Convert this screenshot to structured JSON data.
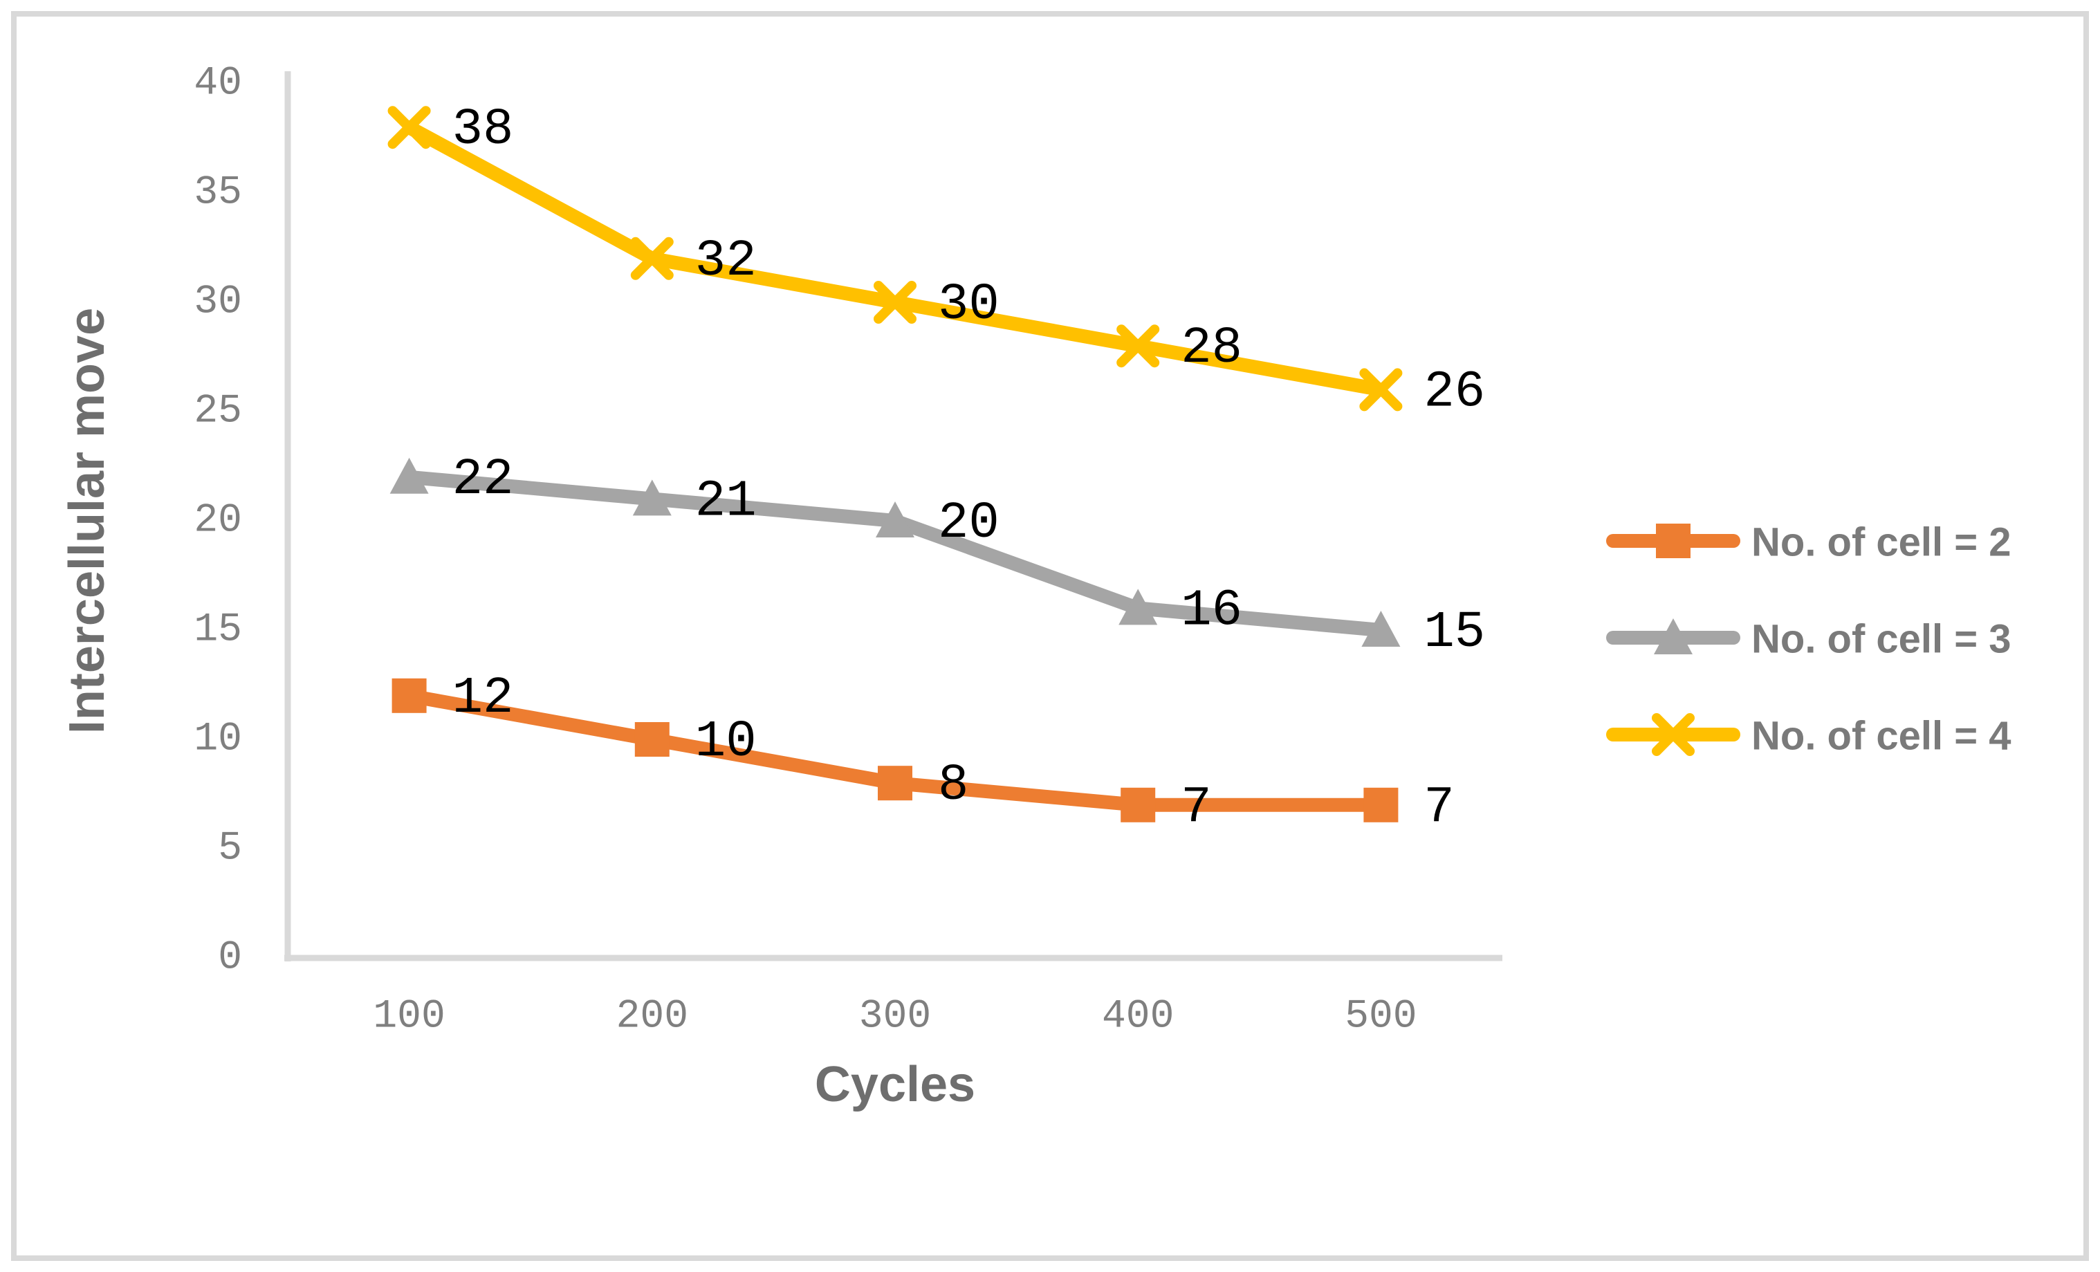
{
  "chart_data": {
    "type": "line",
    "title": "",
    "xlabel": "Cycles",
    "ylabel": "Intercellular move",
    "x": [
      100,
      200,
      300,
      400,
      500
    ],
    "x_tick_labels": [
      "100",
      "200",
      "300",
      "400",
      "500"
    ],
    "ylim": [
      0,
      40
    ],
    "ytick_step": 5,
    "y_tick_labels": [
      "0",
      "5",
      "10",
      "15",
      "20",
      "25",
      "30",
      "35",
      "40"
    ],
    "grid": false,
    "data_labels": true,
    "legend_position": "right",
    "series": [
      {
        "name": "No. of cell = 2",
        "marker": "square",
        "color": "#ED7D31",
        "values": [
          12,
          10,
          8,
          7,
          7
        ]
      },
      {
        "name": "No. of cell = 3",
        "marker": "triangle",
        "color": "#A5A5A5",
        "values": [
          22,
          21,
          20,
          16,
          15
        ]
      },
      {
        "name": "No. of cell = 4",
        "marker": "x",
        "color": "#FFC000",
        "values": [
          38,
          32,
          30,
          28,
          26
        ]
      }
    ],
    "data_label_values": [
      [
        12,
        10,
        8,
        7,
        7
      ],
      [
        22,
        21,
        20,
        16,
        15
      ],
      [
        38,
        32,
        30,
        28,
        26
      ]
    ]
  },
  "colors": {
    "axis_line": "#D9D9D9",
    "frame_border": "#D9D9D9",
    "tick_label": "#7F7F7F",
    "axis_title": "#6E6E6E",
    "legend_text": "#7A7A7A",
    "data_label": "#000000",
    "background": "#FFFFFF"
  }
}
